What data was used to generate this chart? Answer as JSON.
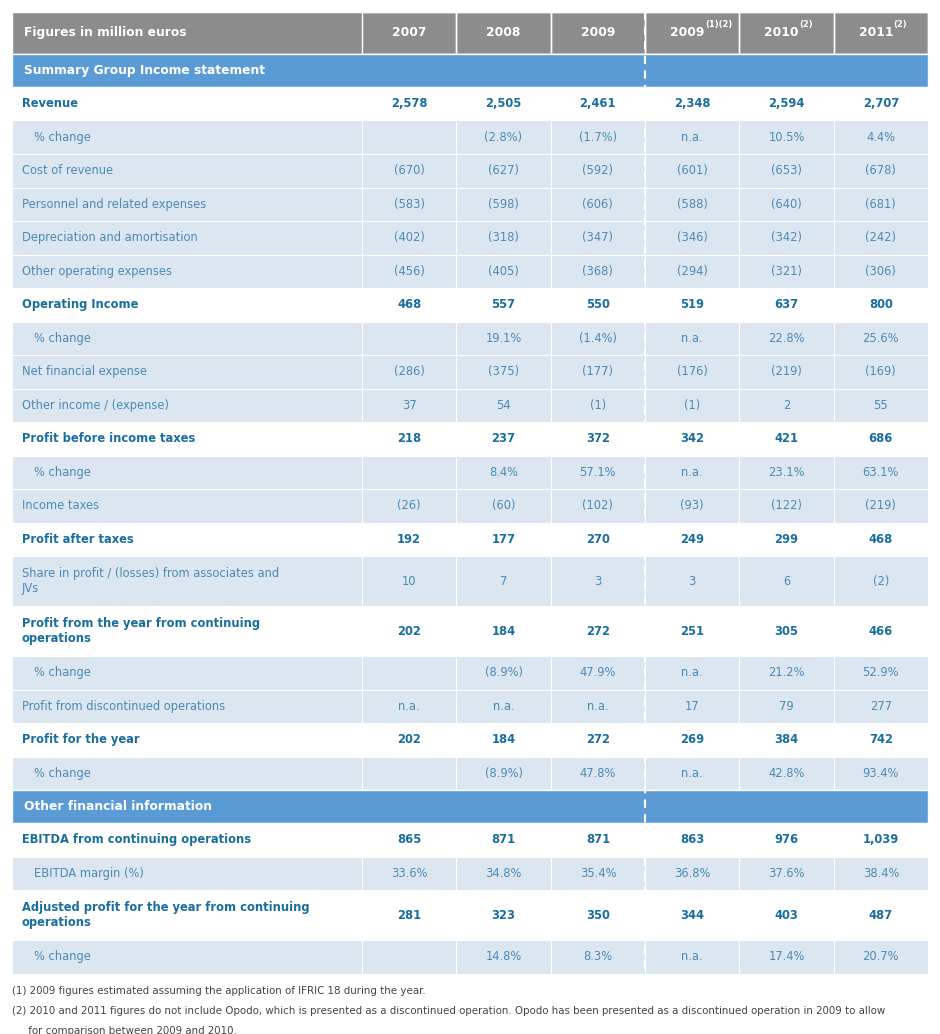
{
  "header_row": [
    "Figures in million euros",
    "2007",
    "2008",
    "2009",
    "2009(1)(2)",
    "2010(2)",
    "2011(2)"
  ],
  "header_superscripts": [
    "",
    "",
    "",
    "",
    "(1)(2)",
    "(2)",
    "(2)"
  ],
  "header_bases": [
    "Figures in million euros",
    "2007",
    "2008",
    "2009",
    "2009",
    "2010",
    "2011"
  ],
  "section1_label": "Summary Group Income statement",
  "section2_label": "Other financial information",
  "rows": [
    {
      "label": "Revenue",
      "values": [
        "2,578",
        "2,505",
        "2,461",
        "2,348",
        "2,594",
        "2,707"
      ],
      "bold": true,
      "indent": false
    },
    {
      "label": "% change",
      "values": [
        "",
        "(2.8%)",
        "(1.7%)",
        "n.a.",
        "10.5%",
        "4.4%"
      ],
      "bold": false,
      "indent": true
    },
    {
      "label": "Cost of revenue",
      "values": [
        "(670)",
        "(627)",
        "(592)",
        "(601)",
        "(653)",
        "(678)"
      ],
      "bold": false,
      "indent": false
    },
    {
      "label": "Personnel and related expenses",
      "values": [
        "(583)",
        "(598)",
        "(606)",
        "(588)",
        "(640)",
        "(681)"
      ],
      "bold": false,
      "indent": false
    },
    {
      "label": "Depreciation and amortisation",
      "values": [
        "(402)",
        "(318)",
        "(347)",
        "(346)",
        "(342)",
        "(242)"
      ],
      "bold": false,
      "indent": false
    },
    {
      "label": "Other operating expenses",
      "values": [
        "(456)",
        "(405)",
        "(368)",
        "(294)",
        "(321)",
        "(306)"
      ],
      "bold": false,
      "indent": false
    },
    {
      "label": "Operating Income",
      "values": [
        "468",
        "557",
        "550",
        "519",
        "637",
        "800"
      ],
      "bold": true,
      "indent": false
    },
    {
      "label": "% change",
      "values": [
        "",
        "19.1%",
        "(1.4%)",
        "n.a.",
        "22.8%",
        "25.6%"
      ],
      "bold": false,
      "indent": true
    },
    {
      "label": "Net financial expense",
      "values": [
        "(286)",
        "(375)",
        "(177)",
        "(176)",
        "(219)",
        "(169)"
      ],
      "bold": false,
      "indent": false
    },
    {
      "label": "Other income / (expense)",
      "values": [
        "37",
        "54",
        "(1)",
        "(1)",
        "2",
        "55"
      ],
      "bold": false,
      "indent": false
    },
    {
      "label": "Profit before income taxes",
      "values": [
        "218",
        "237",
        "372",
        "342",
        "421",
        "686"
      ],
      "bold": true,
      "indent": false
    },
    {
      "label": "% change",
      "values": [
        "",
        "8.4%",
        "57.1%",
        "n.a.",
        "23.1%",
        "63.1%"
      ],
      "bold": false,
      "indent": true
    },
    {
      "label": "Income taxes",
      "values": [
        "(26)",
        "(60)",
        "(102)",
        "(93)",
        "(122)",
        "(219)"
      ],
      "bold": false,
      "indent": false
    },
    {
      "label": "Profit after taxes",
      "values": [
        "192",
        "177",
        "270",
        "249",
        "299",
        "468"
      ],
      "bold": true,
      "indent": false
    },
    {
      "label": "Share in profit / (losses) from associates and\nJVs",
      "values": [
        "10",
        "7",
        "3",
        "3",
        "6",
        "(2)"
      ],
      "bold": false,
      "indent": false
    },
    {
      "label": "Profit from the year from continuing\noperations",
      "values": [
        "202",
        "184",
        "272",
        "251",
        "305",
        "466"
      ],
      "bold": true,
      "indent": false
    },
    {
      "label": "% change",
      "values": [
        "",
        "(8.9%)",
        "47.9%",
        "n.a.",
        "21.2%",
        "52.9%"
      ],
      "bold": false,
      "indent": true
    },
    {
      "label": "Profit from discontinued operations",
      "values": [
        "n.a.",
        "n.a.",
        "n.a.",
        "17",
        "79",
        "277"
      ],
      "bold": false,
      "indent": false
    },
    {
      "label": "Profit for the year",
      "values": [
        "202",
        "184",
        "272",
        "269",
        "384",
        "742"
      ],
      "bold": true,
      "indent": false
    },
    {
      "label": "% change",
      "values": [
        "",
        "(8.9%)",
        "47.8%",
        "n.a.",
        "42.8%",
        "93.4%"
      ],
      "bold": false,
      "indent": true
    }
  ],
  "rows2": [
    {
      "label": "EBITDA from continuing operations",
      "values": [
        "865",
        "871",
        "871",
        "863",
        "976",
        "1,039"
      ],
      "bold": true,
      "indent": false
    },
    {
      "label": "EBITDA margin (%)",
      "values": [
        "33.6%",
        "34.8%",
        "35.4%",
        "36.8%",
        "37.6%",
        "38.4%"
      ],
      "bold": false,
      "indent": true
    },
    {
      "label": "Adjusted profit for the year from continuing\noperations",
      "values": [
        "281",
        "323",
        "350",
        "344",
        "403",
        "487"
      ],
      "bold": true,
      "indent": false
    },
    {
      "label": "% change",
      "values": [
        "",
        "14.8%",
        "8.3%",
        "n.a.",
        "17.4%",
        "20.7%"
      ],
      "bold": false,
      "indent": true
    }
  ],
  "footnote1": "(1) 2009 figures estimated assuming the application of IFRIC 18 during the year.",
  "footnote2": "(2) 2010 and 2011 figures do not include Opodo, which is presented as a discontinued operation. Opodo has been presented as a discontinued operation in 2009 to allow",
  "footnote3": "     for comparison between 2009 and 2010.",
  "header_bg": "#8c8c8c",
  "header_text": "#ffffff",
  "section_bg": "#5b9bd5",
  "section_text": "#ffffff",
  "bold_text": "#1a6e9e",
  "normal_text": "#4a8bb5",
  "light_bg": "#dce6f1",
  "white_bg": "#ffffff",
  "border_color": "#ffffff"
}
